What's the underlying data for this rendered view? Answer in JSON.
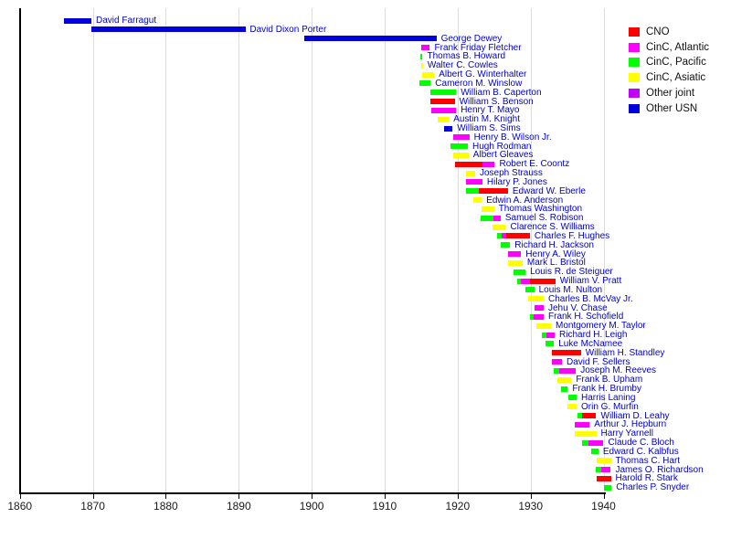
{
  "chart_data": {
    "type": "bar",
    "subtype": "timeline-gantt",
    "title": "",
    "xlabel": "",
    "ylabel": "",
    "grid": "vertical-decade-lines",
    "legend_position": "top-right",
    "x_axis": {
      "min": 1860,
      "max": 1942,
      "ticks": [
        1860,
        1870,
        1880,
        1890,
        1900,
        1910,
        1920,
        1930,
        1940
      ]
    },
    "role_colors": {
      "CNO": "#ff0000",
      "ATL": "#ff00ff",
      "PAC": "#00ff00",
      "ASI": "#ffff00",
      "JOINT": "#bf00ff",
      "USN": "#0000dd"
    },
    "label_color": "#0000cc",
    "legend": [
      {
        "label": "CNO",
        "role": "CNO"
      },
      {
        "label": "CinC, Atlantic",
        "role": "ATL"
      },
      {
        "label": "CinC, Pacific",
        "role": "PAC"
      },
      {
        "label": "CinC, Asiatic",
        "role": "ASI"
      },
      {
        "label": "Other joint",
        "role": "JOINT"
      },
      {
        "label": "Other USN",
        "role": "USN"
      }
    ],
    "people": [
      {
        "name": "David Farragut",
        "segments": [
          [
            1866.0,
            1869.8,
            "USN"
          ]
        ]
      },
      {
        "name": "David Dixon Porter",
        "segments": [
          [
            1869.8,
            1890.9,
            "USN"
          ]
        ]
      },
      {
        "name": "George Dewey",
        "segments": [
          [
            1899.0,
            1917.1,
            "USN"
          ]
        ]
      },
      {
        "name": "Frank Friday Fletcher",
        "segments": [
          [
            1915.0,
            1916.2,
            "ATL"
          ]
        ]
      },
      {
        "name": "Thomas B. Howard",
        "segments": [
          [
            1914.9,
            1915.2,
            "PAC"
          ]
        ]
      },
      {
        "name": "Walter C. Cowles",
        "segments": [
          [
            1914.95,
            1915.25,
            "ASI"
          ]
        ]
      },
      {
        "name": "Albert G. Winterhalter",
        "segments": [
          [
            1915.1,
            1916.8,
            "ASI"
          ]
        ]
      },
      {
        "name": "Cameron M. Winslow",
        "segments": [
          [
            1914.8,
            1916.3,
            "PAC"
          ]
        ]
      },
      {
        "name": "William B. Caperton",
        "segments": [
          [
            1916.3,
            1919.8,
            "PAC"
          ]
        ]
      },
      {
        "name": "William S. Benson",
        "segments": [
          [
            1916.3,
            1919.6,
            "CNO"
          ]
        ]
      },
      {
        "name": "Henry T. Mayo",
        "segments": [
          [
            1916.4,
            1919.8,
            "ATL"
          ]
        ]
      },
      {
        "name": "Austin M. Knight",
        "segments": [
          [
            1917.3,
            1918.8,
            "ASI"
          ]
        ]
      },
      {
        "name": "William S. Sims",
        "segments": [
          [
            1918.1,
            1919.3,
            "USN"
          ]
        ]
      },
      {
        "name": "Henry B. Wilson Jr.",
        "segments": [
          [
            1919.4,
            1921.6,
            "ATL"
          ]
        ]
      },
      {
        "name": "Hugh Rodman",
        "segments": [
          [
            1919.0,
            1921.4,
            "PAC"
          ]
        ]
      },
      {
        "name": "Albert Gleaves",
        "segments": [
          [
            1919.4,
            1921.5,
            "ASI"
          ]
        ]
      },
      {
        "name": "Robert E. Coontz",
        "segments": [
          [
            1919.6,
            1923.4,
            "CNO"
          ],
          [
            1923.4,
            1925.1,
            "ATL"
          ]
        ]
      },
      {
        "name": "Joseph Strauss",
        "segments": [
          [
            1921.1,
            1922.4,
            "ASI"
          ]
        ]
      },
      {
        "name": "Hilary P. Jones",
        "segments": [
          [
            1921.2,
            1923.4,
            "ATL"
          ]
        ]
      },
      {
        "name": "Edward W. Eberle",
        "segments": [
          [
            1921.1,
            1922.9,
            "PAC"
          ],
          [
            1922.9,
            1926.9,
            "CNO"
          ]
        ]
      },
      {
        "name": "Edwin A. Anderson",
        "segments": [
          [
            1922.2,
            1923.3,
            "ASI"
          ]
        ]
      },
      {
        "name": "Thomas Washington",
        "segments": [
          [
            1923.3,
            1925.0,
            "ASI"
          ]
        ]
      },
      {
        "name": "Samuel S. Robison",
        "segments": [
          [
            1923.2,
            1924.9,
            "PAC"
          ],
          [
            1924.9,
            1925.9,
            "ATL"
          ]
        ]
      },
      {
        "name": "Clarence S. Williams",
        "segments": [
          [
            1924.8,
            1926.6,
            "ASI"
          ]
        ]
      },
      {
        "name": "Charles F. Hughes",
        "segments": [
          [
            1925.4,
            1926.0,
            "PAC"
          ],
          [
            1926.0,
            1926.7,
            "ATL"
          ],
          [
            1926.7,
            1929.9,
            "CNO"
          ]
        ]
      },
      {
        "name": "Richard H. Jackson",
        "segments": [
          [
            1925.9,
            1927.2,
            "PAC"
          ]
        ]
      },
      {
        "name": "Henry A. Wiley",
        "segments": [
          [
            1926.9,
            1928.7,
            "ATL"
          ]
        ]
      },
      {
        "name": "Mark L. Bristol",
        "segments": [
          [
            1926.9,
            1928.9,
            "ASI"
          ]
        ]
      },
      {
        "name": "Louis R. de Steiguer",
        "segments": [
          [
            1927.6,
            1929.3,
            "PAC"
          ]
        ]
      },
      {
        "name": "William V. Pratt",
        "segments": [
          [
            1928.2,
            1928.7,
            "PAC"
          ],
          [
            1928.7,
            1929.9,
            "ATL"
          ],
          [
            1929.9,
            1933.4,
            "CNO"
          ]
        ]
      },
      {
        "name": "Louis M. Nulton",
        "segments": [
          [
            1929.3,
            1930.5,
            "PAC"
          ]
        ]
      },
      {
        "name": "Charles B. McVay Jr.",
        "segments": [
          [
            1929.7,
            1931.8,
            "ASI"
          ]
        ]
      },
      {
        "name": "Jehu V. Chase",
        "segments": [
          [
            1930.6,
            1931.8,
            "ATL"
          ]
        ]
      },
      {
        "name": "Frank H. Schofield",
        "segments": [
          [
            1929.9,
            1930.4,
            "PAC"
          ],
          [
            1930.4,
            1931.8,
            "ATL"
          ]
        ]
      },
      {
        "name": "Montgomery M. Taylor",
        "segments": [
          [
            1930.8,
            1932.8,
            "ASI"
          ]
        ]
      },
      {
        "name": "Richard H. Leigh",
        "segments": [
          [
            1931.6,
            1932.2,
            "PAC"
          ],
          [
            1932.2,
            1933.3,
            "ATL"
          ]
        ]
      },
      {
        "name": "Luke McNamee",
        "segments": [
          [
            1932.0,
            1933.2,
            "PAC"
          ]
        ]
      },
      {
        "name": "William H. Standley",
        "segments": [
          [
            1932.9,
            1936.9,
            "CNO"
          ]
        ]
      },
      {
        "name": "David F. Sellers",
        "segments": [
          [
            1932.9,
            1934.3,
            "ATL"
          ]
        ]
      },
      {
        "name": "Joseph M. Reeves",
        "segments": [
          [
            1933.2,
            1933.9,
            "PAC"
          ],
          [
            1933.9,
            1936.2,
            "ATL"
          ]
        ]
      },
      {
        "name": "Frank B. Upham",
        "segments": [
          [
            1933.7,
            1935.6,
            "ASI"
          ]
        ]
      },
      {
        "name": "Frank H. Brumby",
        "segments": [
          [
            1934.2,
            1935.1,
            "PAC"
          ]
        ]
      },
      {
        "name": "Harris Laning",
        "segments": [
          [
            1935.2,
            1936.3,
            "PAC"
          ]
        ]
      },
      {
        "name": "Orin G. Murfin",
        "segments": [
          [
            1935.0,
            1936.3,
            "ASI"
          ]
        ]
      },
      {
        "name": "William D. Leahy",
        "segments": [
          [
            1936.4,
            1937.1,
            "PAC"
          ],
          [
            1937.1,
            1939.0,
            "CNO"
          ]
        ]
      },
      {
        "name": "Arthur J. Hepburn",
        "segments": [
          [
            1936.1,
            1938.1,
            "ATL"
          ]
        ]
      },
      {
        "name": "Harry Yarnell",
        "segments": [
          [
            1936.1,
            1939.0,
            "ASI"
          ]
        ]
      },
      {
        "name": "Claude C. Bloch",
        "segments": [
          [
            1937.1,
            1937.9,
            "PAC"
          ],
          [
            1937.9,
            1940.0,
            "ATL"
          ]
        ]
      },
      {
        "name": "Edward C. Kalbfus",
        "segments": [
          [
            1938.3,
            1939.3,
            "PAC"
          ]
        ]
      },
      {
        "name": "Thomas C. Hart",
        "segments": [
          [
            1939.0,
            1941.0,
            "ASI"
          ]
        ]
      },
      {
        "name": "James O. Richardson",
        "segments": [
          [
            1938.9,
            1939.7,
            "PAC"
          ],
          [
            1939.7,
            1941.0,
            "ATL"
          ]
        ]
      },
      {
        "name": "Harold R. Stark",
        "segments": [
          [
            1939.0,
            1941.0,
            "CNO"
          ]
        ]
      },
      {
        "name": "Charles P. Snyder",
        "segments": [
          [
            1940.0,
            1941.1,
            "PAC"
          ]
        ]
      }
    ]
  }
}
